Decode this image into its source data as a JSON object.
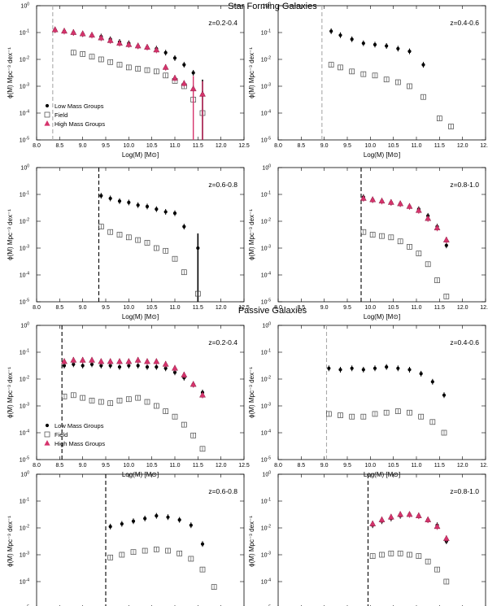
{
  "section_titles": {
    "top": "Star Forming Galaxies",
    "bottom": "Passive Galaxies"
  },
  "colors": {
    "low": "#000000",
    "field": "#444444",
    "high": "#d6336c",
    "grey_cut": "#aaaaaa",
    "black_cut": "#000000"
  },
  "chart_data": [
    {
      "type": "scatter",
      "title": "Star Forming Galaxies",
      "annotation": "z=0.2-0.4",
      "xlabel": "Log(M) [M⊙]",
      "ylabel": "ϕ(M) Mpc⁻³ dex⁻¹",
      "xlim": [
        8.0,
        12.5
      ],
      "ylim_log10": [
        -5,
        0
      ],
      "mass_limit": 8.35,
      "mass_limit_style": "grey",
      "legend": {
        "entries": [
          "Low Mass Groups",
          "Field",
          "High Mass Groups"
        ],
        "placement": "lower-left"
      },
      "series": [
        {
          "name": "Low Mass Groups",
          "x": [
            8.4,
            8.6,
            8.8,
            9.0,
            9.2,
            9.4,
            9.6,
            9.8,
            10.0,
            10.2,
            10.4,
            10.6,
            10.8,
            11.0,
            11.2,
            11.4,
            11.6
          ],
          "log_phi": [
            -0.9,
            -0.95,
            -1.0,
            -1.05,
            -1.1,
            -1.15,
            -1.25,
            -1.35,
            -1.4,
            -1.5,
            -1.55,
            -1.6,
            -1.75,
            -1.95,
            -2.2,
            -2.5,
            -3.3
          ]
        },
        {
          "name": "Field",
          "x": [
            8.8,
            9.0,
            9.2,
            9.4,
            9.6,
            9.8,
            10.0,
            10.2,
            10.4,
            10.6,
            10.8,
            11.0,
            11.2,
            11.4,
            11.6
          ],
          "log_phi": [
            -1.75,
            -1.8,
            -1.9,
            -2.0,
            -2.1,
            -2.2,
            -2.3,
            -2.35,
            -2.4,
            -2.45,
            -2.6,
            -2.8,
            -3.0,
            -3.5,
            -4.0
          ]
        },
        {
          "name": "High Mass Groups",
          "x": [
            8.4,
            8.6,
            8.8,
            9.0,
            9.2,
            9.4,
            9.6,
            9.8,
            10.0,
            10.2,
            10.4,
            10.6,
            10.8,
            11.0,
            11.2,
            11.4,
            11.6
          ],
          "log_phi": [
            -0.9,
            -0.95,
            -1.0,
            -1.05,
            -1.1,
            -1.2,
            -1.3,
            -1.4,
            -1.45,
            -1.5,
            -1.55,
            -1.65,
            -2.3,
            -2.7,
            -2.9,
            -3.1,
            -3.3
          ]
        }
      ]
    },
    {
      "type": "scatter",
      "annotation": "z=0.4-0.6",
      "xlabel": "Log(M) [M⊙]",
      "ylabel": "ϕ(M) Mpc⁻³ dex⁻¹",
      "xlim": [
        8.0,
        12.5
      ],
      "ylim_log10": [
        -5,
        0
      ],
      "mass_limit": 8.95,
      "mass_limit_style": "grey",
      "series": [
        {
          "name": "Low Mass Groups",
          "x": [
            9.15,
            9.35,
            9.6,
            9.85,
            10.1,
            10.35,
            10.6,
            10.85,
            11.15
          ],
          "log_phi": [
            -0.95,
            -1.1,
            -1.25,
            -1.4,
            -1.45,
            -1.5,
            -1.6,
            -1.7,
            -2.2
          ]
        },
        {
          "name": "Field",
          "x": [
            9.15,
            9.35,
            9.6,
            9.85,
            10.1,
            10.35,
            10.6,
            10.85,
            11.15,
            11.5,
            11.75
          ],
          "log_phi": [
            -2.2,
            -2.3,
            -2.45,
            -2.55,
            -2.6,
            -2.75,
            -2.85,
            -3.0,
            -3.4,
            -4.2,
            -4.5
          ]
        }
      ]
    },
    {
      "type": "scatter",
      "annotation": "z=0.6-0.8",
      "xlabel": "Log(M) [M⊙]",
      "ylabel": "ϕ(M) Mpc⁻³ dex⁻¹",
      "xlim": [
        8.0,
        12.5
      ],
      "ylim_log10": [
        -5,
        0
      ],
      "mass_limit": 9.35,
      "mass_limit_style": "black",
      "series": [
        {
          "name": "Low Mass Groups",
          "x": [
            9.4,
            9.6,
            9.8,
            10.0,
            10.2,
            10.4,
            10.6,
            10.8,
            11.0,
            11.2,
            11.5
          ],
          "log_phi": [
            -1.05,
            -1.15,
            -1.25,
            -1.3,
            -1.4,
            -1.45,
            -1.55,
            -1.65,
            -1.7,
            -2.2,
            -3.0
          ]
        },
        {
          "name": "Field",
          "x": [
            9.4,
            9.6,
            9.8,
            10.0,
            10.2,
            10.4,
            10.6,
            10.8,
            11.0,
            11.2,
            11.5
          ],
          "log_phi": [
            -2.2,
            -2.4,
            -2.5,
            -2.6,
            -2.7,
            -2.8,
            -3.0,
            -3.1,
            -3.4,
            -3.9,
            -4.7
          ]
        }
      ]
    },
    {
      "type": "scatter",
      "annotation": "z=0.8-1.0",
      "xlabel": "Log(M) [M⊙]",
      "ylabel": "ϕ(M) Mpc⁻³ dex⁻¹",
      "xlim": [
        8.0,
        12.5
      ],
      "ylim_log10": [
        -5,
        0
      ],
      "mass_limit": 9.8,
      "mass_limit_style": "black",
      "series": [
        {
          "name": "Low Mass Groups",
          "x": [
            9.85,
            10.05,
            10.25,
            10.45,
            10.65,
            10.85,
            11.05,
            11.25,
            11.45,
            11.65
          ],
          "log_phi": [
            -1.1,
            -1.2,
            -1.25,
            -1.3,
            -1.35,
            -1.45,
            -1.55,
            -1.8,
            -2.2,
            -2.9
          ]
        },
        {
          "name": "Field",
          "x": [
            9.85,
            10.05,
            10.25,
            10.45,
            10.65,
            10.85,
            11.05,
            11.25,
            11.45,
            11.65
          ],
          "log_phi": [
            -2.4,
            -2.5,
            -2.55,
            -2.6,
            -2.75,
            -2.95,
            -3.2,
            -3.6,
            -4.2,
            -4.8
          ]
        },
        {
          "name": "High Mass Groups",
          "x": [
            9.85,
            10.05,
            10.25,
            10.45,
            10.65,
            10.85,
            11.05,
            11.25,
            11.45,
            11.65
          ],
          "log_phi": [
            -1.15,
            -1.2,
            -1.25,
            -1.3,
            -1.35,
            -1.45,
            -1.6,
            -1.9,
            -2.25,
            -2.7
          ]
        }
      ]
    },
    {
      "type": "scatter",
      "title": "Passive Galaxies",
      "annotation": "z=0.2-0.4",
      "xlabel": "Log(M) [M⊙]",
      "ylabel": "ϕ(M) Mpc⁻³ dex⁻¹",
      "xlim": [
        8.0,
        12.5
      ],
      "ylim_log10": [
        -5,
        0
      ],
      "mass_limit": 8.55,
      "mass_limit_style": "black",
      "legend": {
        "entries": [
          "Low Mass Groups",
          "Field",
          "High Mass Groups"
        ],
        "placement": "lower-left"
      },
      "series": [
        {
          "name": "Low Mass Groups",
          "x": [
            8.6,
            8.8,
            9.0,
            9.2,
            9.4,
            9.6,
            9.8,
            10.0,
            10.2,
            10.4,
            10.6,
            10.8,
            11.0,
            11.2,
            11.4,
            11.6
          ],
          "log_phi": [
            -1.5,
            -1.45,
            -1.5,
            -1.45,
            -1.5,
            -1.5,
            -1.55,
            -1.5,
            -1.5,
            -1.55,
            -1.55,
            -1.6,
            -1.75,
            -1.95,
            -2.2,
            -2.5
          ]
        },
        {
          "name": "Field",
          "x": [
            8.6,
            8.8,
            9.0,
            9.2,
            9.4,
            9.6,
            9.8,
            10.0,
            10.2,
            10.4,
            10.6,
            10.8,
            11.0,
            11.2,
            11.4,
            11.6
          ],
          "log_phi": [
            -2.65,
            -2.6,
            -2.7,
            -2.8,
            -2.85,
            -2.9,
            -2.8,
            -2.75,
            -2.7,
            -2.85,
            -3.0,
            -3.2,
            -3.4,
            -3.7,
            -4.1,
            -4.6
          ]
        },
        {
          "name": "High Mass Groups",
          "x": [
            8.6,
            8.8,
            9.0,
            9.2,
            9.4,
            9.6,
            9.8,
            10.0,
            10.2,
            10.4,
            10.6,
            10.8,
            11.0,
            11.2,
            11.4,
            11.6
          ],
          "log_phi": [
            -1.35,
            -1.3,
            -1.3,
            -1.3,
            -1.35,
            -1.35,
            -1.35,
            -1.35,
            -1.3,
            -1.35,
            -1.35,
            -1.45,
            -1.6,
            -1.85,
            -2.2,
            -2.6
          ]
        }
      ]
    },
    {
      "type": "scatter",
      "annotation": "z=0.4-0.6",
      "xlabel": "Log(M) [M⊙]",
      "ylabel": "ϕ(M) Mpc⁻³ dex⁻¹",
      "xlim": [
        8.0,
        12.5
      ],
      "ylim_log10": [
        -5,
        0
      ],
      "mass_limit": 9.05,
      "mass_limit_style": "grey",
      "series": [
        {
          "name": "Low Mass Groups",
          "x": [
            9.1,
            9.35,
            9.6,
            9.85,
            10.1,
            10.35,
            10.6,
            10.85,
            11.1,
            11.35,
            11.6
          ],
          "log_phi": [
            -1.6,
            -1.65,
            -1.6,
            -1.65,
            -1.6,
            -1.55,
            -1.6,
            -1.65,
            -1.8,
            -2.1,
            -2.6
          ]
        },
        {
          "name": "Field",
          "x": [
            9.1,
            9.35,
            9.6,
            9.85,
            10.1,
            10.35,
            10.6,
            10.85,
            11.1,
            11.35,
            11.6
          ],
          "log_phi": [
            -3.3,
            -3.35,
            -3.4,
            -3.4,
            -3.3,
            -3.25,
            -3.2,
            -3.25,
            -3.4,
            -3.6,
            -4.0
          ]
        }
      ]
    },
    {
      "type": "scatter",
      "annotation": "z=0.6-0.8",
      "xlabel": "Log(M) [M⊙]",
      "ylabel": "ϕ(M) Mpc⁻³ dex⁻¹",
      "xlim": [
        8.0,
        12.5
      ],
      "ylim_log10": [
        -5,
        0
      ],
      "mass_limit": 9.5,
      "mass_limit_style": "black",
      "series": [
        {
          "name": "Low Mass Groups",
          "x": [
            9.6,
            9.85,
            10.1,
            10.35,
            10.6,
            10.85,
            11.1,
            11.35,
            11.6
          ],
          "log_phi": [
            -1.95,
            -1.85,
            -1.75,
            -1.65,
            -1.55,
            -1.6,
            -1.7,
            -1.9,
            -2.6
          ]
        },
        {
          "name": "Field",
          "x": [
            9.6,
            9.85,
            10.1,
            10.35,
            10.6,
            10.85,
            11.1,
            11.35,
            11.6,
            11.85
          ],
          "log_phi": [
            -3.1,
            -3.0,
            -2.9,
            -2.85,
            -2.8,
            -2.85,
            -2.95,
            -3.15,
            -3.55,
            -4.2
          ]
        }
      ]
    },
    {
      "type": "scatter",
      "annotation": "z=0.8-1.0",
      "xlabel": "Log(M) [M⊙]",
      "ylabel": "ϕ(M) Mpc⁻³ dex⁻¹",
      "xlim": [
        8.0,
        12.5
      ],
      "ylim_log10": [
        -5,
        0
      ],
      "mass_limit": 9.95,
      "mass_limit_style": "black",
      "series": [
        {
          "name": "Low Mass Groups",
          "x": [
            10.05,
            10.25,
            10.45,
            10.65,
            10.85,
            11.05,
            11.25,
            11.45,
            11.65
          ],
          "log_phi": [
            -1.9,
            -1.75,
            -1.65,
            -1.55,
            -1.5,
            -1.55,
            -1.7,
            -1.9,
            -2.5
          ]
        },
        {
          "name": "Field",
          "x": [
            10.05,
            10.25,
            10.45,
            10.65,
            10.85,
            11.05,
            11.25,
            11.45,
            11.65
          ],
          "log_phi": [
            -3.05,
            -3.0,
            -2.95,
            -2.95,
            -3.0,
            -3.05,
            -3.25,
            -3.55,
            -4.0
          ]
        },
        {
          "name": "High Mass Groups",
          "x": [
            10.05,
            10.25,
            10.45,
            10.65,
            10.85,
            11.05,
            11.25,
            11.45,
            11.65
          ],
          "log_phi": [
            -1.85,
            -1.7,
            -1.6,
            -1.5,
            -1.5,
            -1.55,
            -1.7,
            -1.95,
            -2.4
          ]
        }
      ]
    }
  ]
}
